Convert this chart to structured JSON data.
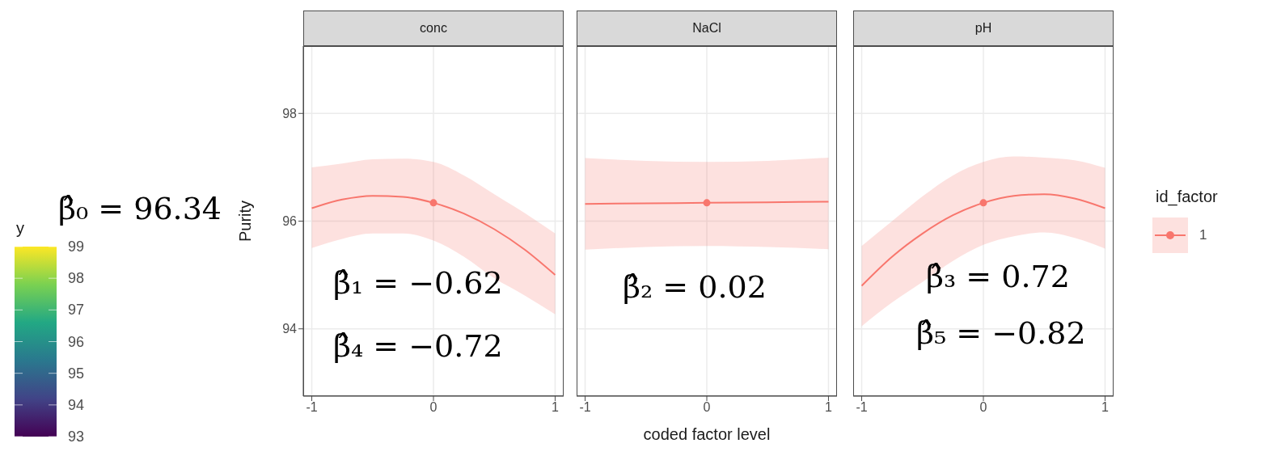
{
  "chart_data": [
    {
      "type": "line",
      "title": "conc",
      "ylabel": "Purity",
      "xlim": [
        -1.07,
        1.07
      ],
      "xticks": [
        -1,
        0,
        1
      ],
      "ylim": [
        92.75,
        99.25
      ],
      "yticks": [
        94,
        96,
        98
      ],
      "grid": true,
      "clabel": "y",
      "clim": [
        93,
        99
      ],
      "cticks": [
        93,
        94,
        95,
        96,
        97,
        98,
        99
      ],
      "annotations": [
        "β̂₀ = 96.34",
        "β̂₁ = −0.62",
        "β̂₄ = −0.72"
      ],
      "series": [
        {
          "color": "#f8766d",
          "x": [
            -1,
            -0.75,
            -0.5,
            -0.25,
            0,
            0.25,
            0.5,
            0.75,
            1
          ],
          "values": [
            96.24,
            96.4,
            96.47,
            96.45,
            96.34,
            96.14,
            95.85,
            95.47,
            95.0
          ],
          "lower": [
            95.5,
            95.67,
            95.77,
            95.77,
            95.64,
            95.34,
            94.94,
            94.62,
            94.27
          ],
          "upper": [
            97.0,
            97.07,
            97.15,
            97.16,
            97.1,
            96.85,
            96.5,
            96.15,
            95.77
          ]
        },
        {
          "type": "scatter",
          "color": "#f8766d",
          "marker": "circle",
          "x": [
            0
          ],
          "values": [
            96.34
          ]
        }
      ]
    },
    {
      "type": "line",
      "title": "NaCl",
      "xlabel": "coded factor level",
      "xlim": [
        -1.07,
        1.07
      ],
      "xticks": [
        -1,
        0,
        1
      ],
      "ylim": [
        92.75,
        99.25
      ],
      "yticks": [
        94,
        96,
        98
      ],
      "grid": true,
      "tick_labels": "x",
      "annotations": [
        "β̂₂ = 0.02"
      ],
      "series": [
        {
          "color": "#f8766d",
          "x": [
            -1,
            -0.5,
            0,
            0.5,
            1
          ],
          "values": [
            96.32,
            96.33,
            96.34,
            96.35,
            96.36
          ],
          "lower": [
            95.47,
            95.52,
            95.54,
            95.52,
            95.48
          ],
          "upper": [
            97.17,
            97.12,
            97.1,
            97.12,
            97.18
          ]
        },
        {
          "type": "scatter",
          "color": "#f8766d",
          "marker": "circle",
          "x": [
            0
          ],
          "values": [
            96.34
          ]
        }
      ]
    },
    {
      "type": "line",
      "title": "pH",
      "xlim": [
        -1.07,
        1.07
      ],
      "xticks": [
        -1,
        0,
        1
      ],
      "ylim": [
        92.75,
        99.25
      ],
      "yticks": [
        94,
        96,
        98
      ],
      "grid": true,
      "tick_labels": "x",
      "legend": "right",
      "legend_title": "id_factor",
      "annotations": [
        "β̂₃ = 0.72",
        "β̂₅ = −0.82"
      ],
      "series": [
        {
          "name": "1",
          "color": "#f8766d",
          "x": [
            -1,
            -0.75,
            -0.5,
            -0.25,
            0,
            0.25,
            0.5,
            0.75,
            1
          ],
          "values": [
            94.8,
            95.34,
            95.77,
            96.11,
            96.34,
            96.47,
            96.5,
            96.42,
            96.24
          ],
          "lower": [
            94.05,
            94.49,
            94.87,
            95.26,
            95.56,
            95.72,
            95.79,
            95.69,
            95.49
          ],
          "upper": [
            95.54,
            96.0,
            96.46,
            96.85,
            97.1,
            97.2,
            97.18,
            97.13,
            96.99
          ]
        },
        {
          "type": "scatter",
          "color": "#f8766d",
          "marker": "circle",
          "x": [
            0
          ],
          "values": [
            96.34
          ]
        }
      ]
    }
  ]
}
